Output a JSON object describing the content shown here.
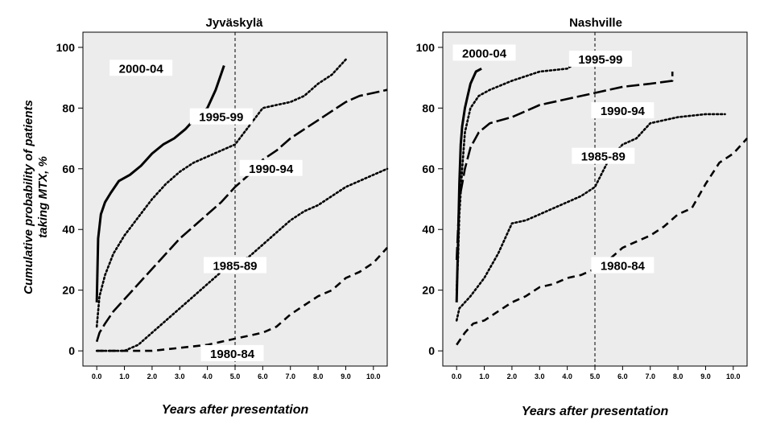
{
  "y_axis_label_line1": "Cumulative probability of patients",
  "y_axis_label_line2": "taking MTX, %",
  "chart_data": [
    {
      "type": "line",
      "title": "Jyväskylä",
      "xlabel": "Years after presentation",
      "xlim": [
        -0.5,
        10.5
      ],
      "ylim": [
        -5,
        105
      ],
      "xticks": [
        "0.0",
        "1.0",
        "2.0",
        "3.0",
        "4.0",
        "5.0",
        "6.0",
        "7.0",
        "8.0",
        "9.0",
        "10.0"
      ],
      "yticks": [
        "0",
        "20",
        "40",
        "60",
        "80",
        "100"
      ],
      "reference_line_x": 5.0,
      "background": "#ececec",
      "series": [
        {
          "name": "2000-04",
          "style": "solid",
          "label_at": [
            1.6,
            93
          ],
          "x": [
            0.0,
            0.05,
            0.15,
            0.3,
            0.5,
            0.8,
            1.2,
            1.6,
            2.0,
            2.4,
            2.8,
            3.2,
            3.6,
            4.0,
            4.3,
            4.6
          ],
          "y": [
            16,
            37,
            45,
            49,
            52,
            56,
            58,
            61,
            65,
            68,
            70,
            73,
            77,
            80,
            86,
            94
          ]
        },
        {
          "name": "1995-99",
          "style": "dotted",
          "label_at": [
            4.5,
            77
          ],
          "x": [
            0.0,
            0.1,
            0.3,
            0.6,
            1.0,
            1.5,
            2.0,
            2.5,
            3.0,
            3.5,
            4.0,
            4.5,
            5.0,
            5.5,
            6.0,
            6.5,
            7.0,
            7.5,
            8.0,
            8.5,
            9.0
          ],
          "y": [
            8,
            18,
            25,
            32,
            38,
            44,
            50,
            55,
            59,
            62,
            64,
            66,
            68,
            74,
            80,
            81,
            82,
            84,
            88,
            91,
            96
          ]
        },
        {
          "name": "1990-94",
          "style": "longdash",
          "label_at": [
            6.3,
            60
          ],
          "x": [
            0.0,
            0.1,
            0.3,
            0.6,
            1.0,
            1.5,
            2.0,
            2.5,
            3.0,
            3.5,
            4.0,
            4.5,
            5.0,
            5.5,
            6.0,
            6.5,
            7.0,
            7.5,
            8.0,
            8.5,
            9.0,
            9.5,
            10.0,
            10.5
          ],
          "y": [
            3,
            6,
            9,
            13,
            17,
            22,
            27,
            32,
            37,
            41,
            45,
            49,
            54,
            58,
            63,
            66,
            70,
            73,
            76,
            79,
            82,
            84,
            85,
            86
          ]
        },
        {
          "name": "1985-89",
          "style": "dotted",
          "label_at": [
            5.0,
            28
          ],
          "x": [
            0.0,
            1.0,
            1.5,
            2.0,
            2.5,
            3.0,
            3.5,
            4.0,
            4.5,
            5.0,
            5.5,
            6.0,
            6.5,
            7.0,
            7.5,
            8.0,
            8.5,
            9.0,
            9.5,
            10.0,
            10.5
          ],
          "y": [
            0,
            0,
            2,
            6,
            10,
            14,
            18,
            22,
            26,
            29,
            31,
            35,
            39,
            43,
            46,
            48,
            51,
            54,
            56,
            58,
            60
          ]
        },
        {
          "name": "1980-84",
          "style": "dashed",
          "label_at": [
            4.9,
            -1
          ],
          "x": [
            0.0,
            1.0,
            2.0,
            3.0,
            4.0,
            4.5,
            5.0,
            5.5,
            6.0,
            6.5,
            7.0,
            7.5,
            8.0,
            8.5,
            9.0,
            9.5,
            10.0,
            10.5
          ],
          "y": [
            0,
            0,
            0,
            1,
            2,
            3,
            4,
            5,
            6,
            8,
            12,
            15,
            18,
            20,
            24,
            26,
            29,
            34
          ]
        }
      ]
    },
    {
      "type": "line",
      "title": "Nashville",
      "xlabel": "Years after presentation",
      "xlim": [
        -0.5,
        10.5
      ],
      "ylim": [
        -5,
        105
      ],
      "xticks": [
        "0.0",
        "1.0",
        "2.0",
        "3.0",
        "4.0",
        "5.0",
        "6.0",
        "7.0",
        "8.0",
        "9.0",
        "10.0"
      ],
      "yticks": [
        "0",
        "20",
        "40",
        "60",
        "80",
        "100"
      ],
      "reference_line_x": 5.0,
      "background": "#ececec",
      "series": [
        {
          "name": "2000-04",
          "style": "solid",
          "label_at": [
            1.0,
            98
          ],
          "x": [
            0.0,
            0.05,
            0.1,
            0.15,
            0.2,
            0.3,
            0.4,
            0.5,
            0.7,
            0.9
          ],
          "y": [
            16,
            35,
            55,
            68,
            74,
            80,
            84,
            88,
            92,
            93
          ]
        },
        {
          "name": "1995-99",
          "style": "dotted",
          "label_at": [
            5.2,
            96
          ],
          "x": [
            0.0,
            0.05,
            0.1,
            0.2,
            0.3,
            0.5,
            0.8,
            1.2,
            2.0,
            3.0,
            4.0,
            4.5,
            5.0,
            6.0
          ],
          "y": [
            20,
            30,
            45,
            60,
            72,
            80,
            84,
            86,
            89,
            92,
            93,
            96,
            97,
            98
          ]
        },
        {
          "name": "1990-94",
          "style": "longdash",
          "label_at": [
            6.0,
            79
          ],
          "x": [
            0.0,
            0.05,
            0.1,
            0.2,
            0.3,
            0.5,
            0.8,
            1.2,
            2.0,
            3.0,
            4.0,
            5.0,
            6.0,
            7.0,
            7.8,
            7.8
          ],
          "y": [
            30,
            40,
            50,
            55,
            60,
            67,
            72,
            75,
            77,
            81,
            83,
            85,
            87,
            88,
            89,
            92
          ]
        },
        {
          "name": "1985-89",
          "style": "dotted",
          "label_at": [
            5.3,
            64
          ],
          "x": [
            0.0,
            0.1,
            0.5,
            1.0,
            1.5,
            2.0,
            2.5,
            3.0,
            3.5,
            4.0,
            4.5,
            5.0,
            5.5,
            6.0,
            6.5,
            7.0,
            7.5,
            8.0,
            9.0,
            9.7
          ],
          "y": [
            10,
            14,
            18,
            24,
            32,
            42,
            43,
            45,
            47,
            49,
            51,
            54,
            63,
            68,
            70,
            75,
            76,
            77,
            78,
            78
          ]
        },
        {
          "name": "1980-84",
          "style": "dashed",
          "label_at": [
            6.0,
            28
          ],
          "x": [
            0.0,
            0.3,
            0.6,
            1.0,
            1.5,
            2.0,
            2.5,
            3.0,
            3.5,
            4.0,
            4.5,
            5.0,
            5.5,
            6.0,
            6.5,
            7.0,
            7.5,
            8.0,
            8.5,
            9.0,
            9.5,
            10.0,
            10.5
          ],
          "y": [
            2,
            6,
            9,
            10,
            13,
            16,
            18,
            21,
            22,
            24,
            25,
            27,
            30,
            34,
            36,
            38,
            41,
            45,
            47,
            55,
            62,
            65,
            70
          ]
        }
      ]
    }
  ]
}
